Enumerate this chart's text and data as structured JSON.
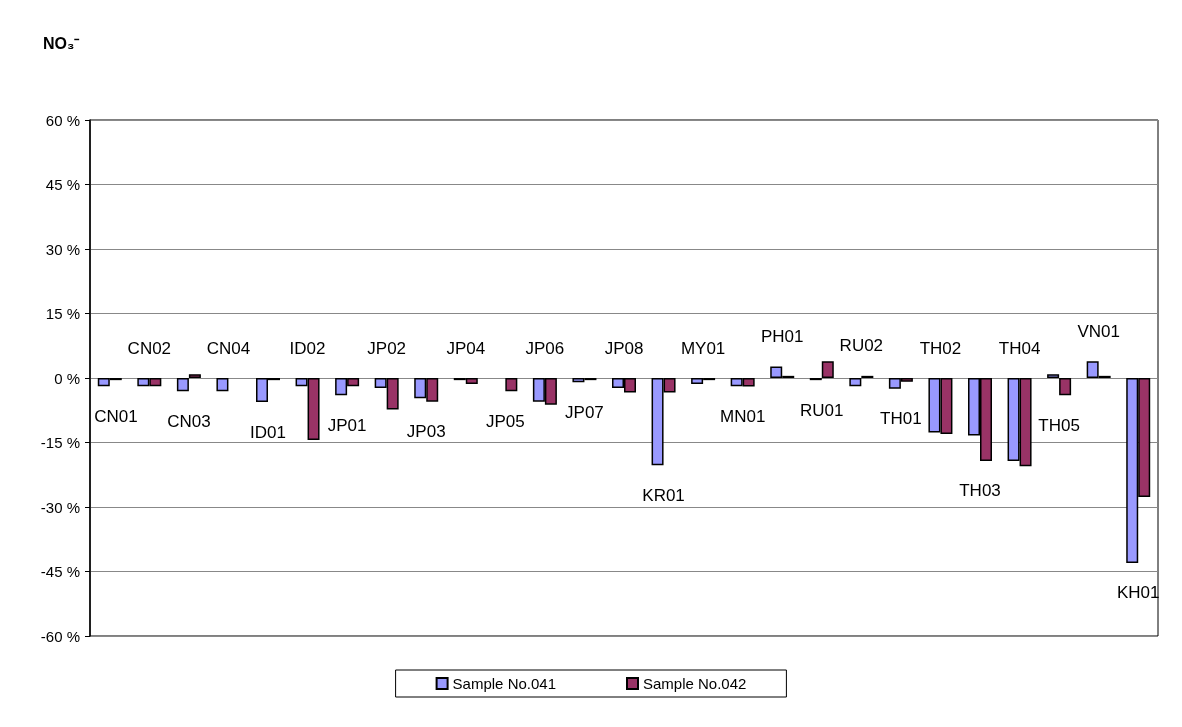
{
  "chart_data": {
    "type": "bar",
    "title": "NO₃⁻",
    "categories": [
      "CN01",
      "CN02",
      "CN03",
      "CN04",
      "ID01",
      "ID02",
      "JP01",
      "JP02",
      "JP03",
      "JP04",
      "JP05",
      "JP06",
      "JP07",
      "JP08",
      "KR01",
      "MY01",
      "MN01",
      "PH01",
      "RU01",
      "RU02",
      "TH01",
      "TH02",
      "TH03",
      "TH04",
      "TH05",
      "VN01",
      "KH01"
    ],
    "series": [
      {
        "name": "Sample No.041",
        "color": "#9999ff",
        "values": [
          -1.9,
          -1.9,
          -3.1,
          -3.1,
          -5.6,
          -1.9,
          -4.0,
          -2.3,
          -4.7,
          -0.5,
          null,
          -5.5,
          -1.0,
          -2.3,
          -20.3,
          -1.4,
          -1.9,
          2.7,
          -0.5,
          -1.9,
          -2.5,
          -12.7,
          -13.4,
          -19.3,
          0.9,
          3.9,
          -43.0
        ]
      },
      {
        "name": "Sample No.042",
        "color": "#993366",
        "values": [
          -0.5,
          -1.9,
          0.9,
          null,
          -0.5,
          -14.4,
          -1.9,
          -7.3,
          -5.5,
          -1.4,
          -3.1,
          -6.2,
          -0.5,
          -3.4,
          -3.4,
          -0.5,
          -2.0,
          0.5,
          3.9,
          0.5,
          -0.9,
          -13.0,
          -19.3,
          -20.5,
          -4.0,
          0.5,
          -27.7
        ]
      }
    ],
    "ylim": [
      -60,
      60
    ],
    "yticks": [
      {
        "value": -60,
        "label": "-60 %"
      },
      {
        "value": -45,
        "label": "-45 %"
      },
      {
        "value": -30,
        "label": "-30 %"
      },
      {
        "value": -15,
        "label": "-15 %"
      },
      {
        "value": 0,
        "label": "0 %"
      },
      {
        "value": 15,
        "label": "15 %"
      },
      {
        "value": 30,
        "label": "30 %"
      },
      {
        "value": 45,
        "label": "45 %"
      },
      {
        "value": 60,
        "label": "60 %"
      }
    ],
    "grid": "y",
    "legend": "bottom"
  }
}
